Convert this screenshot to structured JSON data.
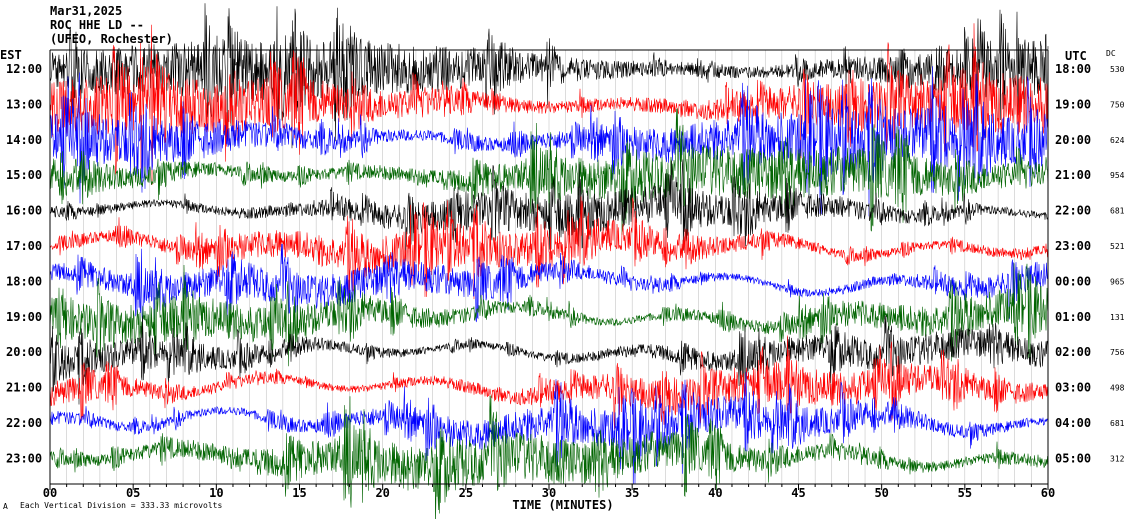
{
  "header": {
    "date": "Mar31,2025",
    "station": "ROC HHE LD --",
    "network": "(UFEO, Rochester)"
  },
  "left_timezone": "EST",
  "right_timezone": "UTC",
  "dc_header": "DC",
  "footer": {
    "xlabel": "TIME (MINUTES)",
    "scale_note": "Each Vertical Division =  333.33 microvolts",
    "corner_mark": "A"
  },
  "colors": {
    "cycle": [
      "#000000",
      "#ff0000",
      "#0000ff",
      "#006400"
    ],
    "grid": "#808080",
    "axis": "#000000"
  },
  "chart_data": {
    "type": "helicorder",
    "xlim": [
      0,
      60
    ],
    "x_ticks": [
      "00",
      "05",
      "10",
      "15",
      "20",
      "25",
      "30",
      "35",
      "40",
      "45",
      "50",
      "55",
      "60"
    ],
    "rows": [
      {
        "est": "12:00",
        "utc": "18:00",
        "dc": "530",
        "color": "#000000",
        "amplitude": 0.85,
        "drift": 0.15
      },
      {
        "est": "13:00",
        "utc": "19:00",
        "dc": "750",
        "color": "#ff0000",
        "amplitude": 0.85,
        "drift": 0.25
      },
      {
        "est": "14:00",
        "utc": "20:00",
        "dc": "624",
        "color": "#0000ff",
        "amplitude": 0.8,
        "drift": 0.3
      },
      {
        "est": "15:00",
        "utc": "21:00",
        "dc": "954",
        "color": "#006400",
        "amplitude": 0.75,
        "drift": 0.3
      },
      {
        "est": "16:00",
        "utc": "22:00",
        "dc": "681",
        "color": "#000000",
        "amplitude": 0.55,
        "drift": 0.35
      },
      {
        "est": "17:00",
        "utc": "23:00",
        "dc": "521",
        "color": "#ff0000",
        "amplitude": 0.55,
        "drift": 0.5
      },
      {
        "est": "18:00",
        "utc": "00:00",
        "dc": "965",
        "color": "#0000ff",
        "amplitude": 0.5,
        "drift": 0.55
      },
      {
        "est": "19:00",
        "utc": "01:00",
        "dc": "131",
        "color": "#006400",
        "amplitude": 0.55,
        "drift": 0.5
      },
      {
        "est": "20:00",
        "utc": "02:00",
        "dc": "756",
        "color": "#000000",
        "amplitude": 0.45,
        "drift": 0.45
      },
      {
        "est": "21:00",
        "utc": "03:00",
        "dc": "498",
        "color": "#ff0000",
        "amplitude": 0.5,
        "drift": 0.5
      },
      {
        "est": "22:00",
        "utc": "04:00",
        "dc": "681",
        "color": "#0000ff",
        "amplitude": 0.55,
        "drift": 0.6
      },
      {
        "est": "23:00",
        "utc": "05:00",
        "dc": "312",
        "color": "#006400",
        "amplitude": 0.7,
        "drift": 0.5
      }
    ]
  }
}
